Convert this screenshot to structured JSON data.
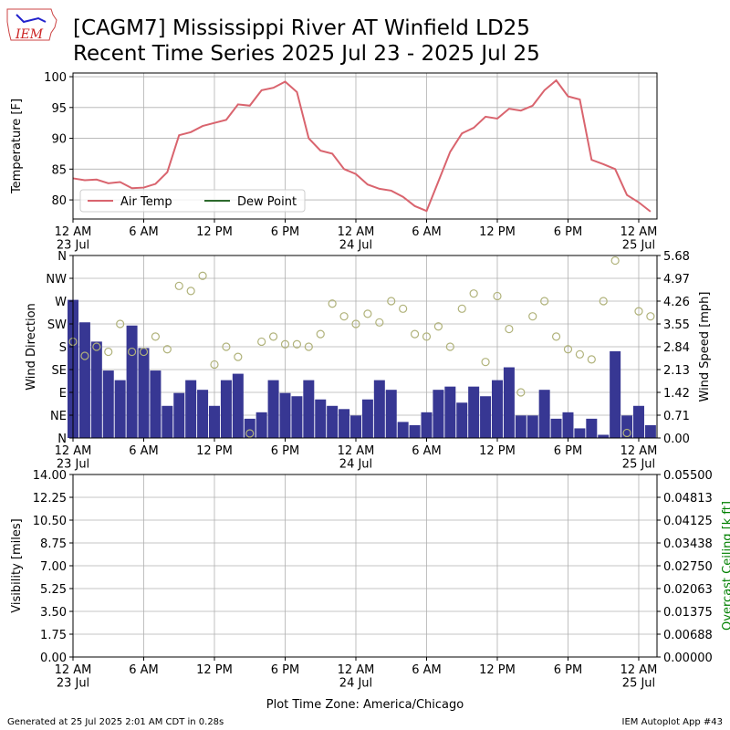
{
  "header": {
    "logo": "IEM",
    "title": "[CAGM7] Mississippi River  AT Winfield LD25",
    "subtitle": "Recent Time Series 2025 Jul 23 - 2025 Jul 25"
  },
  "chart_data": [
    {
      "type": "line",
      "ylabel": "Temperature [F]",
      "grid": true,
      "legend": "lower left",
      "x": [
        "2025-07-23 00:00",
        "2025-07-23 01:00",
        "2025-07-23 02:00",
        "2025-07-23 03:00",
        "2025-07-23 04:00",
        "2025-07-23 05:00",
        "2025-07-23 06:00",
        "2025-07-23 07:00",
        "2025-07-23 08:00",
        "2025-07-23 09:00",
        "2025-07-23 10:00",
        "2025-07-23 11:00",
        "2025-07-23 12:00",
        "2025-07-23 13:00",
        "2025-07-23 14:00",
        "2025-07-23 15:00",
        "2025-07-23 16:00",
        "2025-07-23 17:00",
        "2025-07-23 18:00",
        "2025-07-23 19:00",
        "2025-07-23 20:00",
        "2025-07-23 21:00",
        "2025-07-23 22:00",
        "2025-07-23 23:00",
        "2025-07-24 00:00",
        "2025-07-24 01:00",
        "2025-07-24 02:00",
        "2025-07-24 03:00",
        "2025-07-24 04:00",
        "2025-07-24 05:00",
        "2025-07-24 06:00",
        "2025-07-24 07:00",
        "2025-07-24 08:00",
        "2025-07-24 09:00",
        "2025-07-24 10:00",
        "2025-07-24 11:00",
        "2025-07-24 12:00",
        "2025-07-24 13:00",
        "2025-07-24 14:00",
        "2025-07-24 15:00",
        "2025-07-24 16:00",
        "2025-07-24 17:00",
        "2025-07-24 18:00",
        "2025-07-24 19:00",
        "2025-07-24 20:00",
        "2025-07-24 21:00",
        "2025-07-24 22:00",
        "2025-07-24 23:00",
        "2025-07-25 00:00",
        "2025-07-25 01:00"
      ],
      "series": [
        {
          "name": "Air Temp",
          "color": "#d9646e",
          "values": [
            83.5,
            83.2,
            83.3,
            82.7,
            82.9,
            81.9,
            82.0,
            82.6,
            84.5,
            90.5,
            91.0,
            92.0,
            92.5,
            93.0,
            95.5,
            95.3,
            97.8,
            98.2,
            99.2,
            97.5,
            90.0,
            88.0,
            87.5,
            85.0,
            84.2,
            82.5,
            81.8,
            81.5,
            80.5,
            79.0,
            78.2,
            83.0,
            87.8,
            90.8,
            91.7,
            93.5,
            93.2,
            94.8,
            94.5,
            95.3,
            97.8,
            99.4,
            96.8,
            96.3,
            86.5,
            85.8,
            85.0,
            80.8,
            79.6,
            78.1
          ]
        },
        {
          "name": "Dew Point",
          "color": "#2d6a2d",
          "values": [
            null,
            null,
            null,
            null,
            null,
            null,
            null,
            null,
            null,
            null,
            null,
            null,
            null,
            null,
            null,
            null,
            null,
            null,
            null,
            null,
            null,
            null,
            null,
            null,
            null,
            null,
            null,
            null,
            null,
            null,
            null,
            null,
            null,
            null,
            null,
            null,
            null,
            null,
            null,
            null,
            null,
            null,
            null,
            null,
            null,
            null,
            null,
            null,
            null,
            null
          ]
        }
      ],
      "xlim": [
        "2025-07-23 00:00",
        "2025-07-25 01:33"
      ],
      "xticks": [
        {
          "value": "2025-07-23 00:00",
          "label": "12 AM\n23 Jul"
        },
        {
          "value": "2025-07-23 06:00",
          "label": "6 AM"
        },
        {
          "value": "2025-07-23 12:00",
          "label": "12 PM"
        },
        {
          "value": "2025-07-23 18:00",
          "label": "6 PM"
        },
        {
          "value": "2025-07-24 00:00",
          "label": "12 AM\n24 Jul"
        },
        {
          "value": "2025-07-24 06:00",
          "label": "6 AM"
        },
        {
          "value": "2025-07-24 12:00",
          "label": "12 PM"
        },
        {
          "value": "2025-07-24 18:00",
          "label": "6 PM"
        },
        {
          "value": "2025-07-25 00:00",
          "label": "12 AM\n25 Jul"
        }
      ],
      "ylim": [
        76.9,
        100.6
      ],
      "yticks": [
        80,
        85,
        90,
        95,
        100
      ]
    },
    {
      "type": "bar",
      "ylabel": "Wind Direction",
      "y2label": "Wind Speed [mph]",
      "grid": true,
      "x": [
        "2025-07-23 00:00",
        "2025-07-23 01:00",
        "2025-07-23 02:00",
        "2025-07-23 03:00",
        "2025-07-23 04:00",
        "2025-07-23 05:00",
        "2025-07-23 06:00",
        "2025-07-23 07:00",
        "2025-07-23 08:00",
        "2025-07-23 09:00",
        "2025-07-23 10:00",
        "2025-07-23 11:00",
        "2025-07-23 12:00",
        "2025-07-23 13:00",
        "2025-07-23 14:00",
        "2025-07-23 15:00",
        "2025-07-23 16:00",
        "2025-07-23 17:00",
        "2025-07-23 18:00",
        "2025-07-23 19:00",
        "2025-07-23 20:00",
        "2025-07-23 21:00",
        "2025-07-23 22:00",
        "2025-07-23 23:00",
        "2025-07-24 00:00",
        "2025-07-24 01:00",
        "2025-07-24 02:00",
        "2025-07-24 03:00",
        "2025-07-24 04:00",
        "2025-07-24 05:00",
        "2025-07-24 06:00",
        "2025-07-24 07:00",
        "2025-07-24 08:00",
        "2025-07-24 09:00",
        "2025-07-24 10:00",
        "2025-07-24 11:00",
        "2025-07-24 12:00",
        "2025-07-24 13:00",
        "2025-07-24 14:00",
        "2025-07-24 15:00",
        "2025-07-24 16:00",
        "2025-07-24 17:00",
        "2025-07-24 18:00",
        "2025-07-24 19:00",
        "2025-07-24 20:00",
        "2025-07-24 21:00",
        "2025-07-24 22:00",
        "2025-07-24 23:00",
        "2025-07-25 00:00",
        "2025-07-25 01:00"
      ],
      "series": [
        {
          "type": "bar",
          "axis": "y2",
          "color": "#373793",
          "values": [
            4.3,
            3.6,
            3.0,
            2.1,
            1.8,
            3.5,
            2.8,
            2.1,
            1.0,
            1.4,
            1.8,
            1.5,
            1.0,
            1.8,
            2.0,
            0.6,
            0.8,
            1.8,
            1.4,
            1.3,
            1.8,
            1.2,
            1.0,
            0.9,
            0.7,
            1.2,
            1.8,
            1.5,
            0.5,
            0.4,
            0.8,
            1.5,
            1.6,
            1.1,
            1.6,
            1.3,
            1.8,
            2.2,
            0.7,
            0.7,
            1.5,
            0.6,
            0.8,
            0.3,
            0.6,
            0.1,
            2.7,
            0.7,
            1.0,
            0.4
          ]
        },
        {
          "type": "scatter",
          "color": "#b0b27a",
          "values": [
            190,
            162,
            180,
            170,
            225,
            170,
            170,
            200,
            175,
            300,
            290,
            320,
            145,
            180,
            160,
            9,
            190,
            200,
            185,
            185,
            180,
            205,
            265,
            240,
            225,
            245,
            228,
            270,
            255,
            205,
            200,
            220,
            180,
            255,
            285,
            150,
            280,
            215,
            90,
            240,
            270,
            200,
            175,
            165,
            155,
            270,
            350,
            10,
            250,
            240
          ]
        }
      ],
      "xlim": [
        "2025-07-23 00:00",
        "2025-07-25 01:33"
      ],
      "xticks": [
        {
          "value": "2025-07-23 00:00",
          "label": "12 AM\n23 Jul"
        },
        {
          "value": "2025-07-23 06:00",
          "label": "6 AM"
        },
        {
          "value": "2025-07-23 12:00",
          "label": "12 PM"
        },
        {
          "value": "2025-07-23 18:00",
          "label": "6 PM"
        },
        {
          "value": "2025-07-24 00:00",
          "label": "12 AM\n24 Jul"
        },
        {
          "value": "2025-07-24 06:00",
          "label": "6 AM"
        },
        {
          "value": "2025-07-24 12:00",
          "label": "12 PM"
        },
        {
          "value": "2025-07-24 18:00",
          "label": "6 PM"
        },
        {
          "value": "2025-07-25 00:00",
          "label": "12 AM\n25 Jul"
        }
      ],
      "ylim": [
        0,
        360
      ],
      "yticks": [
        {
          "value": 0,
          "label": "N"
        },
        {
          "value": 45,
          "label": "NE"
        },
        {
          "value": 90,
          "label": "E"
        },
        {
          "value": 135,
          "label": "SE"
        },
        {
          "value": 180,
          "label": "S"
        },
        {
          "value": 225,
          "label": "SW"
        },
        {
          "value": 270,
          "label": "W"
        },
        {
          "value": 315,
          "label": "NW"
        },
        {
          "value": 360,
          "label": "N"
        }
      ],
      "y2lim": [
        0,
        5.68
      ],
      "y2ticks": [
        {
          "value": 0,
          "label": "0.00"
        },
        0.71,
        1.42,
        2.13,
        2.84,
        3.55,
        4.26,
        4.97,
        5.68
      ]
    },
    {
      "type": "line",
      "ylabel": "Visibility [miles]",
      "y2label": "Overcast Ceiling [k ft]",
      "y2label_color": "#008000",
      "xlabel": "Plot Time Zone: America/Chicago",
      "grid": true,
      "series": [],
      "xlim": [
        "2025-07-23 00:00",
        "2025-07-25 01:33"
      ],
      "xticks": [
        {
          "value": "2025-07-23 00:00",
          "label": "12 AM\n23 Jul"
        },
        {
          "value": "2025-07-23 06:00",
          "label": "6 AM"
        },
        {
          "value": "2025-07-23 12:00",
          "label": "12 PM"
        },
        {
          "value": "2025-07-23 18:00",
          "label": "6 PM"
        },
        {
          "value": "2025-07-24 00:00",
          "label": "12 AM\n24 Jul"
        },
        {
          "value": "2025-07-24 06:00",
          "label": "6 AM"
        },
        {
          "value": "2025-07-24 12:00",
          "label": "12 PM"
        },
        {
          "value": "2025-07-24 18:00",
          "label": "6 PM"
        },
        {
          "value": "2025-07-25 00:00",
          "label": "12 AM\n25 Jul"
        }
      ],
      "ylim": [
        0,
        14
      ],
      "yticks": [
        {
          "value": 0,
          "label": "0.00"
        },
        1.75,
        {
          "value": 3.5,
          "label": "3.50"
        },
        5.25,
        {
          "value": 7,
          "label": "7.00"
        },
        8.75,
        {
          "value": 10.5,
          "label": "10.50"
        },
        12.25,
        {
          "value": 14,
          "label": "14.00"
        }
      ],
      "y2lim": [
        0,
        0.055
      ],
      "y2ticks": [
        {
          "value": 0,
          "label": "0.00000"
        },
        {
          "value": 0.006875,
          "label": "0.00688"
        },
        0.01375,
        {
          "value": 0.020625,
          "label": "0.02063"
        },
        {
          "value": 0.0275,
          "label": "0.02750"
        },
        {
          "value": 0.034375,
          "label": "0.03438"
        },
        0.04125,
        {
          "value": 0.048125,
          "label": "0.04813"
        },
        {
          "value": 0.055,
          "label": "0.05500"
        }
      ]
    }
  ],
  "footer": {
    "generated": "Generated at 25 Jul 2025 2:01 AM CDT in 0.28s",
    "app": "IEM Autoplot App #43"
  }
}
